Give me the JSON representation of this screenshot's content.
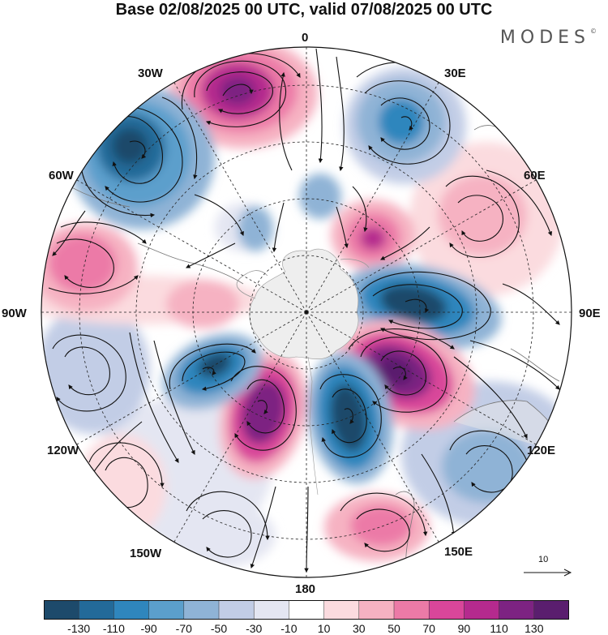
{
  "header": {
    "title": "Base 02/08/2025 00 UTC, valid 07/08/2025 00 UTC",
    "brand": "MODES",
    "brand_mark": "©"
  },
  "map": {
    "projection": "south polar stereographic",
    "longitude_labels": {
      "top": "0",
      "top_right": "30E",
      "upper_right": "60E",
      "right": "90E",
      "lower_right": "120E",
      "bottom_right": "150E",
      "bottom": "180",
      "bottom_left": "150W",
      "lower_left": "120W",
      "left": "90W",
      "upper_left": "60W",
      "top_left": "30W"
    },
    "vector_reference": "10",
    "colors": {
      "land": "#e8e8e8",
      "ice": "#eeeeee",
      "neutral": "#ffffff"
    }
  },
  "colorbar": {
    "labels": [
      "-130",
      "-110",
      "-90",
      "-70",
      "-50",
      "-30",
      "-10",
      "10",
      "30",
      "50",
      "70",
      "90",
      "110",
      "130"
    ],
    "colors": [
      "#1d4a6b",
      "#236a99",
      "#2f86bd",
      "#5b9fcc",
      "#8fb3d6",
      "#c2cde6",
      "#e4e6f2",
      "#ffffff",
      "#fbdbdf",
      "#f6b2c2",
      "#ec7aa7",
      "#d9469a",
      "#b52a8e",
      "#7d2382",
      "#5a1e6e"
    ]
  }
}
